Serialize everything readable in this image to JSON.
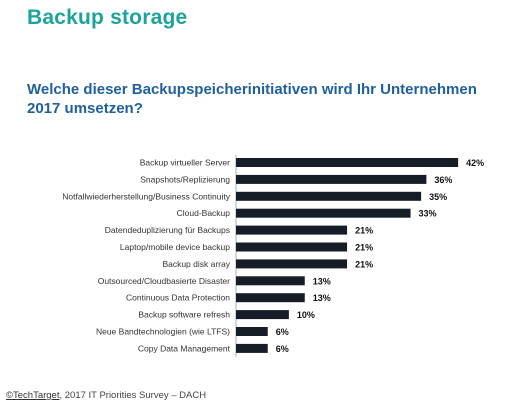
{
  "page": {
    "title": "Backup storage",
    "question": "Welche dieser Backupspeicherinitiativen wird Ihr Unternehmen 2017 umsetzen?"
  },
  "footer": {
    "brand": "©TechTarget",
    "rest": ", 2017 IT Priorities Survey – DACH"
  },
  "chart_data": {
    "type": "bar",
    "orientation": "horizontal",
    "categories": [
      "Backup virtueller Server",
      "Snapshots/Replizierung",
      "Notfallwiederherstellung/Business Continuity",
      "Cloud-Backup",
      "Datendeduplizierung für Backups",
      "Laptop/mobile device backup",
      "Backup disk array",
      "Outsourced/Cloudbasierte Disaster",
      "Continuous Data Protection",
      "Backup software refresh",
      "Neue Bandtechnologien (wie LTFS)",
      "Copy Data Management"
    ],
    "values": [
      42,
      36,
      35,
      33,
      21,
      21,
      21,
      13,
      13,
      10,
      6,
      6
    ],
    "value_labels": [
      "42%",
      "36%",
      "35%",
      "33%",
      "21%",
      "21%",
      "21%",
      "13%",
      "13%",
      "10%",
      "6%",
      "6%"
    ],
    "xlim": [
      0,
      45
    ],
    "grid": false,
    "bar_color": "#161d27"
  }
}
